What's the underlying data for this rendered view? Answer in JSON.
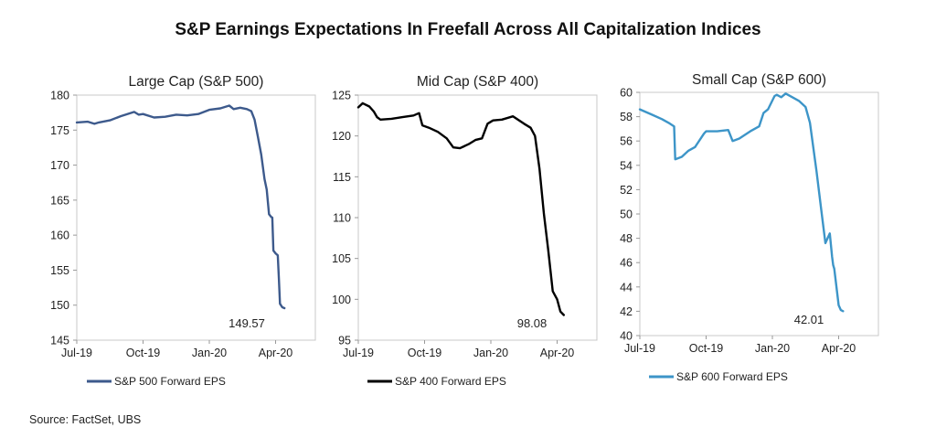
{
  "title": "S&P Earnings Expectations In Freefall Across All Capitalization Indices",
  "source": "Source: FactSet, UBS",
  "chart_data": [
    {
      "type": "line",
      "title": "Large Cap (S&P 500)",
      "color": "#3d5a8c",
      "legend": "S&P 500 Forward EPS",
      "ylim": [
        145,
        180
      ],
      "yticks": [
        145,
        150,
        155,
        160,
        165,
        170,
        175,
        180
      ],
      "xlim": [
        0,
        10.8
      ],
      "xticks": [
        {
          "label": "Jul-19",
          "x": 0
        },
        {
          "label": "Oct-19",
          "x": 3
        },
        {
          "label": "Jan-20",
          "x": 6
        },
        {
          "label": "Apr-20",
          "x": 9
        }
      ],
      "end_label": "149.57",
      "series": [
        {
          "name": "S&P 500 Forward EPS",
          "x": [
            0,
            0.5,
            0.8,
            1,
            1.5,
            2,
            2.6,
            2.8,
            3,
            3.5,
            4,
            4.5,
            5,
            5.5,
            6,
            6.5,
            6.9,
            7.1,
            7.4,
            7.7,
            7.9,
            8.05,
            8.2,
            8.35,
            8.5,
            8.6,
            8.7,
            8.75,
            8.8,
            8.85,
            8.9,
            9.0,
            9.1,
            9.15,
            9.2,
            9.3,
            9.4
          ],
          "values": [
            176.1,
            176.2,
            175.9,
            176.1,
            176.4,
            177.0,
            177.6,
            177.2,
            177.3,
            176.8,
            176.9,
            177.2,
            177.1,
            177.3,
            177.9,
            178.1,
            178.5,
            178.0,
            178.2,
            178.0,
            177.7,
            176.5,
            174.0,
            171.5,
            168.0,
            166.5,
            163.0,
            162.8,
            162.6,
            162.5,
            157.8,
            157.4,
            157.1,
            153.8,
            150.2,
            149.7,
            149.57
          ]
        }
      ]
    },
    {
      "type": "line",
      "title": "Mid Cap (S&P 400)",
      "color": "#000000",
      "legend": "S&P 400 Forward EPS",
      "ylim": [
        95,
        125
      ],
      "yticks": [
        95,
        100,
        105,
        110,
        115,
        120,
        125
      ],
      "xlim": [
        0,
        10.8
      ],
      "xticks": [
        {
          "label": "Jul-19",
          "x": 0
        },
        {
          "label": "Oct-19",
          "x": 3
        },
        {
          "label": "Jan-20",
          "x": 6
        },
        {
          "label": "Apr-20",
          "x": 9
        }
      ],
      "end_label": "98.08",
      "series": [
        {
          "name": "S&P 400 Forward EPS",
          "x": [
            0,
            0.2,
            0.5,
            0.7,
            0.85,
            1.0,
            1.5,
            2.0,
            2.5,
            2.75,
            2.9,
            3.2,
            3.6,
            4.0,
            4.3,
            4.6,
            5.0,
            5.3,
            5.6,
            5.85,
            6.1,
            6.5,
            7.0,
            7.5,
            7.8,
            8.0,
            8.2,
            8.4,
            8.6,
            8.8,
            9.0,
            9.15,
            9.3
          ],
          "values": [
            123.5,
            124.0,
            123.6,
            123.0,
            122.3,
            122.0,
            122.1,
            122.3,
            122.5,
            122.8,
            121.3,
            121.0,
            120.5,
            119.7,
            118.6,
            118.5,
            119.0,
            119.5,
            119.7,
            121.5,
            121.9,
            122.0,
            122.4,
            121.5,
            121.0,
            120.0,
            116.0,
            110.5,
            106.0,
            101.0,
            100.0,
            98.5,
            98.08
          ]
        }
      ]
    },
    {
      "type": "line",
      "title": "Small Cap (S&P 600)",
      "color": "#3d95c8",
      "legend": "S&P 600 Forward EPS",
      "ylim": [
        40,
        60
      ],
      "yticks": [
        40,
        42,
        44,
        46,
        48,
        50,
        52,
        54,
        56,
        58,
        60
      ],
      "xlim": [
        0,
        10.8
      ],
      "xticks": [
        {
          "label": "Jul-19",
          "x": 0
        },
        {
          "label": "Oct-19",
          "x": 3
        },
        {
          "label": "Jan-20",
          "x": 6
        },
        {
          "label": "Apr-20",
          "x": 9
        }
      ],
      "end_label": "42.01",
      "series": [
        {
          "name": "S&P 600 Forward EPS",
          "x": [
            0,
            0.5,
            1.0,
            1.3,
            1.55,
            1.6,
            1.9,
            2.2,
            2.5,
            2.9,
            3.0,
            3.5,
            4.0,
            4.2,
            4.5,
            5.0,
            5.4,
            5.6,
            5.8,
            6.1,
            6.2,
            6.4,
            6.6,
            6.9,
            7.2,
            7.5,
            7.7,
            8.0,
            8.2,
            8.4,
            8.6,
            8.7,
            8.75,
            8.8,
            8.9,
            9.0,
            9.1,
            9.2
          ],
          "values": [
            58.6,
            58.2,
            57.8,
            57.5,
            57.2,
            54.5,
            54.7,
            55.2,
            55.5,
            56.6,
            56.8,
            56.8,
            56.9,
            56.0,
            56.2,
            56.8,
            57.2,
            58.3,
            58.6,
            59.7,
            59.8,
            59.6,
            59.9,
            59.6,
            59.3,
            58.8,
            57.5,
            53.5,
            50.5,
            47.6,
            48.4,
            46.5,
            45.8,
            45.5,
            44.0,
            42.5,
            42.1,
            42.01
          ]
        }
      ]
    }
  ]
}
